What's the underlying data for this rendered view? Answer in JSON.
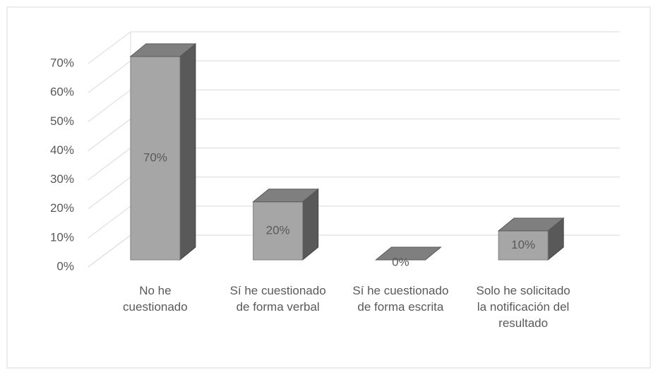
{
  "chart_data": {
    "type": "bar3d",
    "categories": [
      "No he cuestionado",
      "Sí he cuestionado de forma verbal",
      "Sí he cuestionado de forma escrita",
      "Solo he solicitado la notificación del resultado"
    ],
    "values": [
      70,
      20,
      0,
      10
    ],
    "value_labels": [
      "70%",
      "20%",
      "0%",
      "10%"
    ],
    "color": "#a6a6a6",
    "ylim": [
      0,
      70
    ],
    "yticks": [
      {
        "value": 0,
        "label": "0%"
      },
      {
        "value": 10,
        "label": "10%"
      },
      {
        "value": 20,
        "label": "20%"
      },
      {
        "value": 30,
        "label": "30%"
      },
      {
        "value": 40,
        "label": "40%"
      },
      {
        "value": 50,
        "label": "50%"
      },
      {
        "value": 60,
        "label": "60%"
      },
      {
        "value": 70,
        "label": "70%"
      }
    ],
    "grid": true
  }
}
